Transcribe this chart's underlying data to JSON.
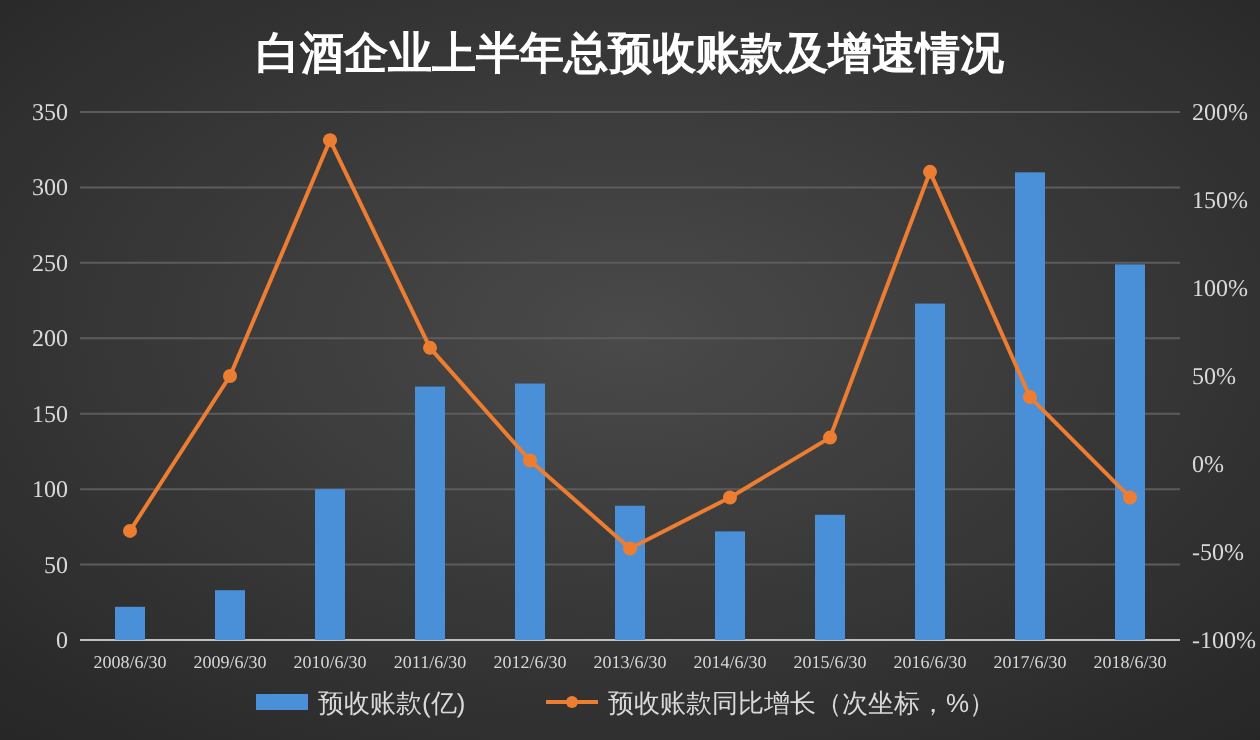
{
  "chart_data": {
    "type": "bar",
    "title": "白酒企业上半年总预收账款及增速情况",
    "categories": [
      "2008/6/30",
      "2009/6/30",
      "2010/6/30",
      "2011/6/30",
      "2012/6/30",
      "2013/6/30",
      "2014/6/30",
      "2015/6/30",
      "2016/6/30",
      "2017/6/30",
      "2018/6/30"
    ],
    "series": [
      {
        "name": "预收账款(亿)",
        "color": "#4a90d9",
        "values": [
          22,
          33,
          100,
          168,
          170,
          89,
          72,
          83,
          223,
          310,
          249
        ]
      },
      {
        "name": "预收账款同比增长（次坐标，%）",
        "type": "line",
        "axis": "y2",
        "color": "#ed7d31",
        "marker": "circle",
        "values": [
          -38,
          50,
          184,
          66,
          2,
          -48,
          -19,
          15,
          166,
          38,
          -19
        ]
      }
    ],
    "ylim": [
      0,
      350
    ],
    "yticks": [
      0,
      50,
      100,
      150,
      200,
      250,
      300,
      350
    ],
    "y2lim": [
      -100,
      200
    ],
    "y2ticks": [
      {
        "value": -100,
        "label": "-100%"
      },
      {
        "value": -50,
        "label": "-50%"
      },
      {
        "value": 0,
        "label": "0%"
      },
      {
        "value": 50,
        "label": "50%"
      },
      {
        "value": 100,
        "label": "100%"
      },
      {
        "value": 150,
        "label": "150%"
      },
      {
        "value": 200,
        "label": "200%"
      }
    ],
    "grid": "y",
    "legend": "bottom"
  }
}
